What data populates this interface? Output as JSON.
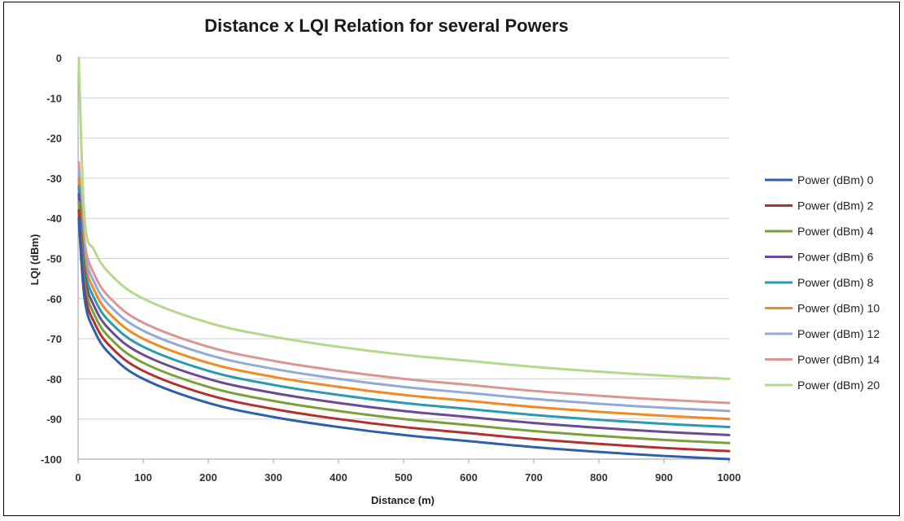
{
  "chart_data": {
    "type": "line",
    "title": "Distance x LQI Relation for several Powers",
    "xlabel": "Distance (m)",
    "ylabel": "LQI (dBm)",
    "xlim": [
      0,
      1000
    ],
    "ylim": [
      -100,
      0
    ],
    "x_ticks": [
      "0",
      "100",
      "200",
      "300",
      "400",
      "500",
      "600",
      "700",
      "800",
      "900",
      "1000"
    ],
    "y_ticks": [
      "0",
      "-10",
      "-20",
      "-30",
      "-40",
      "-50",
      "-60",
      "-70",
      "-80",
      "-90",
      "-100"
    ],
    "grid": "horizontal",
    "legend_position": "right",
    "x": [
      1,
      10,
      25,
      50,
      100,
      200,
      300,
      400,
      500,
      600,
      700,
      800,
      900,
      1000
    ],
    "series": [
      {
        "name": "Power (dBm) 0",
        "color": "#2e5fa8",
        "values": [
          -40,
          -60,
          -68,
          -74,
          -80,
          -86,
          -89.5,
          -92,
          -94,
          -95.5,
          -97,
          -98.2,
          -99.2,
          -100
        ]
      },
      {
        "name": "Power (dBm) 2",
        "color": "#b3302f",
        "values": [
          -38,
          -58,
          -66,
          -72,
          -78,
          -84,
          -87.5,
          -90,
          -92,
          -93.5,
          -95,
          -96.2,
          -97.2,
          -98
        ]
      },
      {
        "name": "Power (dBm) 4",
        "color": "#7aa03a",
        "values": [
          -36,
          -56,
          -64,
          -70,
          -76,
          -82,
          -85.5,
          -88,
          -90,
          -91.5,
          -93,
          -94.2,
          -95.2,
          -96
        ]
      },
      {
        "name": "Power (dBm) 6",
        "color": "#6a4a94",
        "values": [
          -34,
          -54,
          -62,
          -68,
          -74,
          -80,
          -83.5,
          -86,
          -88,
          -89.5,
          -91,
          -92.2,
          -93.2,
          -94
        ]
      },
      {
        "name": "Power (dBm) 8",
        "color": "#2a9ab0",
        "values": [
          -32,
          -52,
          -60,
          -66,
          -72,
          -78,
          -81.5,
          -84,
          -86,
          -87.5,
          -89,
          -90.2,
          -91.2,
          -92
        ]
      },
      {
        "name": "Power (dBm) 10",
        "color": "#f08a24",
        "values": [
          -30,
          -50,
          -58,
          -64,
          -70,
          -76,
          -79.5,
          -82,
          -84,
          -85.5,
          -87,
          -88.2,
          -89.2,
          -90
        ]
      },
      {
        "name": "Power (dBm) 12",
        "color": "#93a9d8",
        "values": [
          -28,
          -48,
          -56,
          -62,
          -68,
          -74,
          -77.5,
          -80,
          -82,
          -83.5,
          -85,
          -86.2,
          -87.2,
          -88
        ]
      },
      {
        "name": "Power (dBm) 14",
        "color": "#d99694",
        "values": [
          -26,
          -46,
          -54,
          -60,
          -66,
          -72,
          -75.5,
          -78,
          -80,
          -81.5,
          -83,
          -84.2,
          -85.2,
          -86
        ]
      },
      {
        "name": "Power (dBm) 20",
        "color": "#b5d88a",
        "values": [
          0,
          -40,
          -48,
          -54,
          -60,
          -66,
          -69.5,
          -72,
          -74,
          -75.5,
          -77,
          -78.2,
          -79.2,
          -80
        ]
      }
    ]
  }
}
